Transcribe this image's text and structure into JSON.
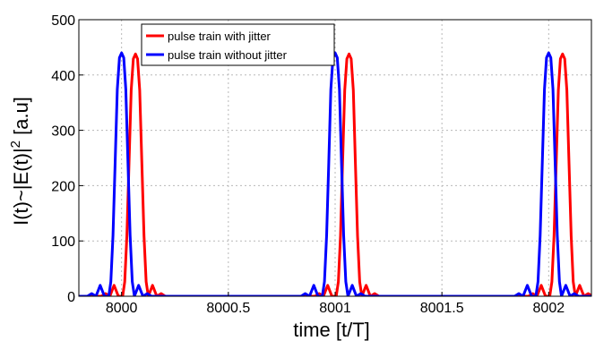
{
  "chart_data": {
    "type": "line",
    "xlabel": "time [t/T]",
    "ylabel": "I(t)~|E(t)|",
    "ylabel_superscript": "2",
    "ylabel_suffix": " [a.u]",
    "xlim": [
      7999.8,
      8002.2
    ],
    "ylim": [
      0,
      500
    ],
    "xticks": [
      8000,
      8000.5,
      8001,
      8001.5,
      8002
    ],
    "xtick_labels": [
      "8000",
      "8000.5",
      "8001",
      "8001.5",
      "8002"
    ],
    "yticks": [
      0,
      100,
      200,
      300,
      400,
      500
    ],
    "ytick_labels": [
      "0",
      "100",
      "200",
      "300",
      "400",
      "500"
    ],
    "grid": true,
    "legend_position": "top-left",
    "pulse_centers": [
      8000,
      8001,
      8002
    ],
    "series": [
      {
        "name": "pulse train with jitter",
        "color": "#ff0000",
        "jitter_offset": 0.065,
        "peak": 438
      },
      {
        "name": "pulse train without jitter",
        "color": "#0000ff",
        "jitter_offset": 0.0,
        "peak": 440
      }
    ],
    "pulse_profile": {
      "dx": [
        -0.16,
        -0.14,
        -0.12,
        -0.1,
        -0.08,
        -0.06,
        -0.05,
        -0.04,
        -0.03,
        -0.02,
        -0.01,
        0,
        0.01,
        0.02,
        0.03,
        0.04,
        0.05,
        0.06,
        0.08,
        0.1,
        0.12,
        0.14,
        0.16
      ],
      "rel": [
        0.0,
        0.011,
        0.0,
        0.045,
        0.0,
        0.0,
        0.06,
        0.25,
        0.55,
        0.85,
        0.98,
        1.0,
        0.98,
        0.85,
        0.55,
        0.25,
        0.06,
        0.0,
        0.045,
        0.0,
        0.011,
        0.0,
        0.0
      ]
    }
  }
}
